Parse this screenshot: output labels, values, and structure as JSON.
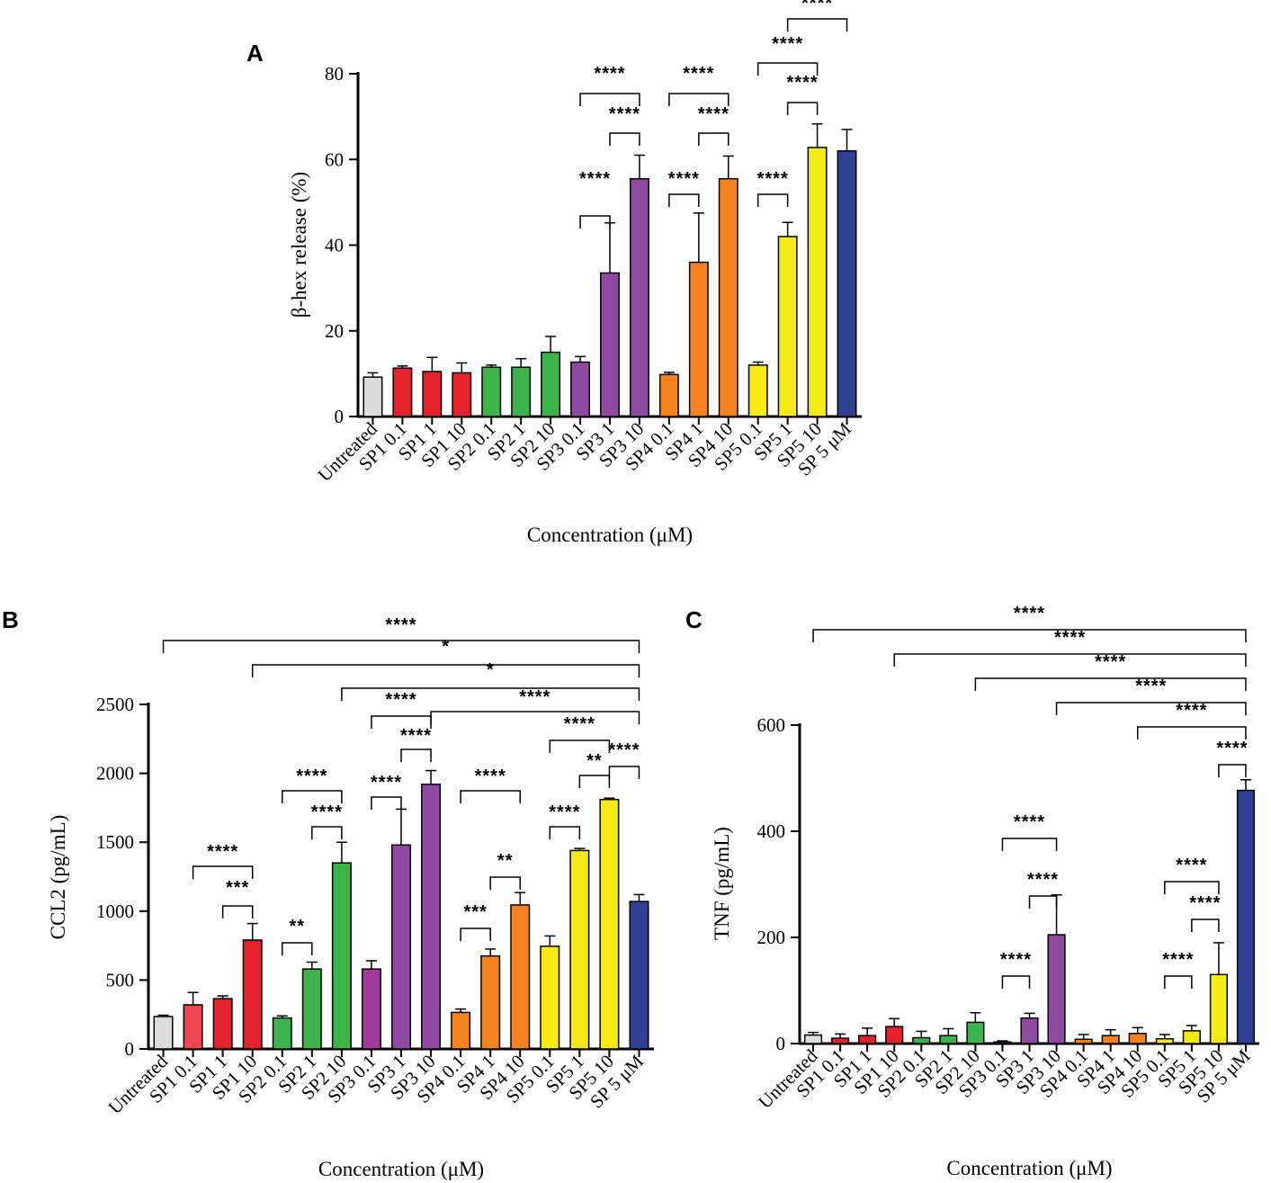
{
  "chart_data": [
    {
      "panel": "A",
      "type": "bar",
      "ylabel": "β-hex release (%)",
      "xlabel": "Concentration (μM)",
      "ylim": [
        0,
        80
      ],
      "yticks": [
        "0",
        "20",
        "40",
        "60",
        "80"
      ],
      "categories": [
        "Untreated",
        "SP1 0.1",
        "SP1 1",
        "SP1 10",
        "SP2 0.1",
        "SP2 1",
        "SP2 10",
        "SP3 0.1",
        "SP3 1",
        "SP3 10",
        "SP4 0.1",
        "SP4 1",
        "SP4 10",
        "SP5 0.1",
        "SP5 1",
        "SP5 10",
        "SP 5 μM"
      ],
      "values": [
        9.2,
        11.3,
        10.5,
        10.2,
        11.5,
        11.5,
        15,
        12.7,
        33.5,
        55.5,
        9.8,
        36,
        55.5,
        12,
        42,
        62.8,
        62
      ],
      "errors": [
        1,
        0.5,
        3.3,
        2.3,
        0.5,
        2,
        3.7,
        1.3,
        11.7,
        5.5,
        0.5,
        11.5,
        5.3,
        0.7,
        3.3,
        5.5,
        5
      ],
      "colors": [
        "#dcdcdc",
        "#e3222b",
        "#e3222b",
        "#e3222b",
        "#3cb44b",
        "#3cb44b",
        "#3cb44b",
        "#8e4aa0",
        "#8e4aa0",
        "#8e4aa0",
        "#f6821f",
        "#f6821f",
        "#f6821f",
        "#f5ea14",
        "#f5ea14",
        "#f5ea14",
        "#2e3f94"
      ],
      "significance": [
        {
          "from": 7,
          "to": 8,
          "label": "****"
        },
        {
          "from": 8,
          "to": 9,
          "label": "****"
        },
        {
          "from": 7,
          "to": 9,
          "label": "****"
        },
        {
          "from": 10,
          "to": 11,
          "label": "****"
        },
        {
          "from": 11,
          "to": 12,
          "label": "****"
        },
        {
          "from": 10,
          "to": 12,
          "label": "****"
        },
        {
          "from": 13,
          "to": 14,
          "label": "****"
        },
        {
          "from": 14,
          "to": 15,
          "label": "****"
        },
        {
          "from": 13,
          "to": 15,
          "label": "****"
        },
        {
          "from": 14,
          "to": 16,
          "label": "****"
        }
      ]
    },
    {
      "panel": "B",
      "type": "bar",
      "ylabel": "CCL2 (pg/mL)",
      "xlabel": "Concentration (μM)",
      "ylim": [
        0,
        2500
      ],
      "yticks": [
        "0",
        "500",
        "1000",
        "1500",
        "2000",
        "2500"
      ],
      "categories": [
        "Untreated",
        "SP1 0.1",
        "SP1 1",
        "SP1 10",
        "SP2 0.1",
        "SP2 1",
        "SP2 10",
        "SP3 0.1",
        "SP3 1",
        "SP3 10",
        "SP4 0.1",
        "SP4 1",
        "SP4 10",
        "SP5 0.1",
        "SP5 1",
        "SP5 10",
        "SP 5 μM"
      ],
      "values": [
        235,
        320,
        365,
        790,
        225,
        580,
        1350,
        580,
        1480,
        1920,
        265,
        675,
        1045,
        745,
        1440,
        1810,
        1070
      ],
      "errors": [
        10,
        90,
        20,
        120,
        15,
        50,
        150,
        60,
        260,
        100,
        25,
        50,
        90,
        75,
        15,
        10,
        50
      ],
      "colors": [
        "#dcdcdc",
        "#ee4650",
        "#e3222b",
        "#e3222b",
        "#3cb44b",
        "#3cb44b",
        "#3cb44b",
        "#a03a9b",
        "#8e4aa0",
        "#8e4aa0",
        "#f6821f",
        "#f6821f",
        "#f6821f",
        "#f5ea14",
        "#f5ea14",
        "#f5ea14",
        "#2e3f94"
      ],
      "significance": [
        {
          "from": 1,
          "to": 3,
          "label": "****"
        },
        {
          "from": 2,
          "to": 3,
          "label": "***"
        },
        {
          "from": 4,
          "to": 5,
          "label": "**"
        },
        {
          "from": 4,
          "to": 6,
          "label": "****"
        },
        {
          "from": 5,
          "to": 6,
          "label": "****"
        },
        {
          "from": 7,
          "to": 8,
          "label": "****"
        },
        {
          "from": 7,
          "to": 9,
          "label": "****"
        },
        {
          "from": 8,
          "to": 9,
          "label": "****"
        },
        {
          "from": 10,
          "to": 11,
          "label": "***"
        },
        {
          "from": 11,
          "to": 12,
          "label": "**"
        },
        {
          "from": 10,
          "to": 12,
          "label": "****"
        },
        {
          "from": 13,
          "to": 14,
          "label": "****"
        },
        {
          "from": 14,
          "to": 15,
          "label": "**"
        },
        {
          "from": 13,
          "to": 15,
          "label": "****"
        },
        {
          "from": 15,
          "to": 16,
          "label": "****"
        },
        {
          "from": 9,
          "to": 16,
          "label": "****"
        },
        {
          "from": 6,
          "to": 16,
          "label": "*"
        },
        {
          "from": 3,
          "to": 16,
          "label": "*"
        },
        {
          "from": 0,
          "to": 16,
          "label": "****"
        }
      ]
    },
    {
      "panel": "C",
      "type": "bar",
      "ylabel": "TNF (pg/mL)",
      "xlabel": "Concentration (μM)",
      "ylim": [
        0,
        600
      ],
      "yticks": [
        "0",
        "200",
        "400",
        "600"
      ],
      "categories": [
        "Untreated",
        "SP1 0.1",
        "SP1 1",
        "SP1 10",
        "SP2 0.1",
        "SP2 1",
        "SP2 10",
        "SP3 0.1",
        "SP3 1",
        "SP3 10",
        "SP4 0.1",
        "SP4 1",
        "SP4 10",
        "SP5 0.1",
        "SP5 1",
        "SP5 10",
        "SP 5 μM"
      ],
      "values": [
        16,
        10,
        15,
        32,
        11,
        15,
        40,
        3,
        48,
        205,
        8,
        15,
        19,
        9,
        24,
        130,
        477
      ],
      "errors": [
        5,
        8,
        14,
        15,
        12,
        13,
        18,
        2,
        9,
        75,
        9,
        11,
        11,
        8,
        10,
        60,
        20
      ],
      "colors": [
        "#dcdcdc",
        "#e3222b",
        "#e3222b",
        "#e3222b",
        "#3cb44b",
        "#3cb44b",
        "#3cb44b",
        "#8e4aa0",
        "#8e4aa0",
        "#8e4aa0",
        "#f6821f",
        "#f6821f",
        "#f6821f",
        "#f5ea14",
        "#f5ea14",
        "#f5ea14",
        "#2e3f94"
      ],
      "significance": [
        {
          "from": 7,
          "to": 8,
          "label": "****"
        },
        {
          "from": 8,
          "to": 9,
          "label": "****"
        },
        {
          "from": 7,
          "to": 9,
          "label": "****"
        },
        {
          "from": 13,
          "to": 14,
          "label": "****"
        },
        {
          "from": 14,
          "to": 15,
          "label": "****"
        },
        {
          "from": 13,
          "to": 15,
          "label": "****"
        },
        {
          "from": 15,
          "to": 16,
          "label": "****"
        },
        {
          "from": 12,
          "to": 16,
          "label": "****"
        },
        {
          "from": 9,
          "to": 16,
          "label": "****"
        },
        {
          "from": 6,
          "to": 16,
          "label": "****"
        },
        {
          "from": 3,
          "to": 16,
          "label": "****"
        },
        {
          "from": 0,
          "to": 16,
          "label": "****"
        }
      ]
    }
  ]
}
